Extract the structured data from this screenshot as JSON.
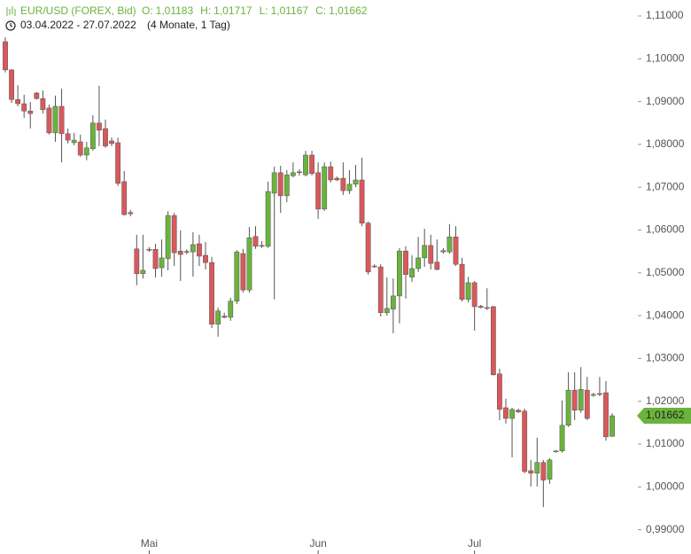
{
  "chart_data": {
    "type": "candlestick",
    "title": "EUR/USD (FOREX, Bid)",
    "header_values": [
      {
        "label": "O:",
        "text": "1,01183"
      },
      {
        "label": "H:",
        "text": "1,01717"
      },
      {
        "label": "L:",
        "text": "1,01167"
      },
      {
        "label": "C:",
        "text": "1,01662"
      }
    ],
    "date_range": "03.04.2022 - 27.07.2022",
    "duration": "(4 Monate, 1 Tag)",
    "last_price_label": "1,01662",
    "up_color": "#6ab33d",
    "down_color": "#d9595a",
    "wick_color": "#555555",
    "open": [
      1.104,
      1.0974,
      1.0905,
      1.0895,
      1.0878,
      1.092,
      1.0907,
      1.0885,
      1.0827,
      1.0889,
      1.0825,
      1.0804,
      1.0806,
      1.0775,
      1.079,
      1.085,
      1.0837,
      1.0808,
      1.0804,
      1.0713,
      1.0641,
      1.0556,
      1.0498,
      1.0555,
      1.0555,
      1.0512,
      1.0533,
      1.0634,
      1.0551,
      1.055,
      1.0549,
      1.0568,
      1.0541,
      1.0524,
      1.038,
      1.0399,
      1.0396,
      1.0434,
      1.0545,
      1.046,
      1.0585,
      1.0564,
      1.0562,
      1.0686,
      1.0734,
      1.068,
      1.0727,
      1.0736,
      1.0729,
      1.0775,
      1.0734,
      1.0649,
      1.0748,
      1.0721,
      1.0721,
      1.0692,
      1.0707,
      1.0717,
      1.0616,
      1.0516,
      1.0514,
      1.0407,
      1.0415,
      1.0446,
      1.0551,
      1.049,
      1.051,
      1.0535,
      1.0564,
      1.0525,
      1.0552,
      1.0549,
      1.0584,
      1.052,
      1.0438,
      1.0477,
      1.0422,
      1.0419,
      1.0421,
      1.0264,
      1.0185,
      1.016,
      1.0179,
      1.0177,
      1.0038,
      1.0032,
      1.0057,
      1.0018,
      1.0082,
      1.0084,
      1.0144,
      1.0226,
      1.0179,
      1.0226,
      1.0214,
      1.0218,
      1.022,
      1.01183
    ],
    "high": [
      1.105,
      1.0976,
      1.0938,
      1.0916,
      1.0899,
      1.0922,
      1.0926,
      1.0893,
      1.0914,
      1.093,
      1.0837,
      1.0827,
      1.0823,
      1.0806,
      1.0868,
      1.0937,
      1.0858,
      1.0816,
      1.0816,
      1.0738,
      1.0647,
      1.0589,
      1.0589,
      1.056,
      1.0568,
      1.0578,
      1.0644,
      1.064,
      1.0599,
      1.0555,
      1.0595,
      1.0589,
      1.0572,
      1.0537,
      1.0419,
      1.0407,
      1.0442,
      1.0553,
      1.0556,
      1.0607,
      1.0609,
      1.0574,
      1.0713,
      1.0748,
      1.075,
      1.074,
      1.0758,
      1.0742,
      1.0785,
      1.0785,
      1.0758,
      1.0758,
      1.076,
      1.0725,
      1.0758,
      1.074,
      1.0752,
      1.0769,
      1.062,
      1.052,
      1.052,
      1.0489,
      1.0487,
      1.0558,
      1.0562,
      1.0541,
      1.0584,
      1.0603,
      1.0589,
      1.0578,
      1.0558,
      1.0614,
      1.0609,
      1.0535,
      1.0491,
      1.0481,
      1.0425,
      1.0464,
      1.0423,
      1.0276,
      1.0206,
      1.0185,
      1.0183,
      1.0183,
      1.0063,
      1.0115,
      1.0063,
      1.0067,
      1.0086,
      1.0202,
      1.0268,
      1.0268,
      1.028,
      1.0257,
      1.022,
      1.0257,
      1.0247,
      1.01717
    ],
    "low": [
      1.0968,
      1.0897,
      1.0889,
      1.0862,
      1.0837,
      1.0905,
      1.0872,
      1.0823,
      1.0806,
      1.0758,
      1.0802,
      1.0798,
      1.0771,
      1.0763,
      1.0785,
      1.0796,
      1.0792,
      1.0796,
      1.0703,
      1.0634,
      1.0632,
      1.0471,
      1.0487,
      1.0549,
      1.0489,
      1.0491,
      1.0506,
      1.0516,
      1.0481,
      1.0543,
      1.0491,
      1.0516,
      1.0508,
      1.0371,
      1.0351,
      1.0394,
      1.0388,
      1.0427,
      1.0454,
      1.0454,
      1.0556,
      1.0558,
      1.0558,
      1.0438,
      1.064,
      1.0665,
      1.0723,
      1.0727,
      1.0725,
      1.0727,
      1.0626,
      1.0645,
      1.0711,
      1.0715,
      1.0682,
      1.0684,
      1.07,
      1.0609,
      1.0496,
      1.0512,
      1.0398,
      1.04,
      1.0359,
      1.0382,
      1.044,
      1.0479,
      1.0502,
      1.0514,
      1.0508,
      1.0506,
      1.0545,
      1.0545,
      1.0516,
      1.0433,
      1.0431,
      1.0365,
      1.0417,
      1.0413,
      1.026,
      1.0156,
      1.0148,
      1.0069,
      1.0173,
      1.0032,
      1.0001,
      1.0001,
      0.9953,
      1.0007,
      1.008,
      1.008,
      1.014,
      1.0156,
      1.0173,
      1.0156,
      1.021,
      1.0212,
      1.0108,
      1.01167
    ],
    "close": [
      1.0974,
      1.0905,
      1.0895,
      1.0878,
      1.0872,
      1.0907,
      1.0881,
      1.0827,
      1.0889,
      1.0825,
      1.081,
      1.081,
      1.0775,
      1.0792,
      1.085,
      1.0833,
      1.0796,
      1.0802,
      1.0709,
      1.0636,
      1.0638,
      1.0498,
      1.0506,
      1.0553,
      1.051,
      1.0535,
      1.0634,
      1.0547,
      1.0543,
      1.0549,
      1.0566,
      1.0539,
      1.0524,
      1.038,
      1.0411,
      1.0396,
      1.0434,
      1.0549,
      1.046,
      1.0582,
      1.0562,
      1.0562,
      1.069,
      1.0734,
      1.068,
      1.0729,
      1.0734,
      1.0734,
      1.0775,
      1.0732,
      1.0649,
      1.0748,
      1.0717,
      1.0717,
      1.0692,
      1.0707,
      1.0717,
      1.0616,
      1.0502,
      1.0514,
      1.0407,
      1.0417,
      1.0446,
      1.0551,
      1.0496,
      1.051,
      1.0535,
      1.0564,
      1.0522,
      1.0508,
      1.0549,
      1.0584,
      1.052,
      1.0438,
      1.0477,
      1.0421,
      1.0419,
      1.0417,
      1.0262,
      1.0181,
      1.016,
      1.0181,
      1.0175,
      1.0036,
      1.0032,
      1.0057,
      1.0016,
      1.0063,
      1.0084,
      1.0144,
      1.0226,
      1.0179,
      1.0228,
      1.016,
      1.0216,
      1.0216,
      1.0117,
      1.01662
    ],
    "xlim": [
      -0.85,
      101.1
    ],
    "xticks": [
      {
        "value": 23,
        "label": "Mai"
      },
      {
        "value": 50,
        "label": "Jun"
      },
      {
        "value": 75,
        "label": "Jul"
      }
    ],
    "ylim": [
      0.98847,
      1.11373
    ],
    "yticks": [
      {
        "value": 1.11,
        "label": "1,11000"
      },
      {
        "value": 1.1,
        "label": "1,10000"
      },
      {
        "value": 1.09,
        "label": "1,09000"
      },
      {
        "value": 1.08,
        "label": "1,08000"
      },
      {
        "value": 1.07,
        "label": "1,07000"
      },
      {
        "value": 1.06,
        "label": "1,06000"
      },
      {
        "value": 1.05,
        "label": "1,05000"
      },
      {
        "value": 1.04,
        "label": "1,04000"
      },
      {
        "value": 1.03,
        "label": "1,03000"
      },
      {
        "value": 1.02,
        "label": "1,02000"
      },
      {
        "value": 1.01,
        "label": "1,01000"
      },
      {
        "value": 1.0,
        "label": "1,00000"
      },
      {
        "value": 0.99,
        "label": "0,99000"
      }
    ],
    "grid": false
  }
}
